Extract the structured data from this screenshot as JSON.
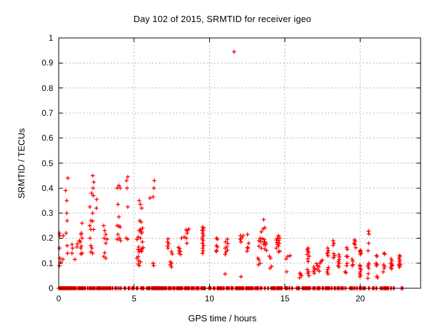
{
  "colors": {
    "background": "#ffffff",
    "marker": "#ff0000",
    "grid": "#b5b5b5",
    "axis": "#000000",
    "text": "#000000"
  },
  "chart_data": {
    "type": "scatter",
    "title": "Day 102 of 2015, SRMTID for receiver igeo",
    "xlabel": "GPS time / hours",
    "ylabel": "SRMTID / TECUs",
    "xlim": [
      0,
      24
    ],
    "ylim": [
      0,
      1
    ],
    "grid": true,
    "legend": "none",
    "marker": "plus",
    "xtick_values": [
      0,
      5,
      10,
      15,
      20
    ],
    "xtick_labels": [
      "0",
      "5",
      "10",
      "15",
      "20"
    ],
    "ytick_values": [
      0,
      0.1,
      0.2,
      0.3,
      0.4,
      0.5,
      0.6,
      0.7,
      0.8,
      0.9,
      1
    ],
    "ytick_labels": [
      "0",
      "0.1",
      "0.2",
      "0.3",
      "0.4",
      "0.5",
      "0.6",
      "0.7",
      "0.8",
      "0.9",
      "1"
    ],
    "points": [
      [
        0.05,
        0.22
      ],
      [
        0.08,
        0.21
      ],
      [
        0.05,
        0.16
      ],
      [
        0.08,
        0.12
      ],
      [
        0.05,
        0.09
      ],
      [
        0.12,
        0.105
      ],
      [
        0.3,
        0.21
      ],
      [
        0.28,
        0.115
      ],
      [
        0.61,
        0.44
      ],
      [
        0.46,
        0.39
      ],
      [
        0.53,
        0.35
      ],
      [
        0.53,
        0.3
      ],
      [
        0.56,
        0.27
      ],
      [
        0.49,
        0.22
      ],
      [
        0.56,
        0.17
      ],
      [
        0.58,
        0.14
      ],
      [
        0.88,
        0.175
      ],
      [
        0.92,
        0.16
      ],
      [
        0.88,
        0.14
      ],
      [
        1.07,
        0.115
      ],
      [
        1.24,
        0.177
      ],
      [
        1.21,
        0.165
      ],
      [
        1.55,
        0.26
      ],
      [
        1.5,
        0.22
      ],
      [
        1.48,
        0.215
      ],
      [
        1.55,
        0.2
      ],
      [
        1.43,
        0.185
      ],
      [
        1.5,
        0.168
      ],
      [
        1.46,
        0.16
      ],
      [
        1.55,
        0.14
      ],
      [
        1.48,
        0.137
      ],
      [
        1.37,
        0.19
      ],
      [
        2.26,
        0.45
      ],
      [
        2.32,
        0.424
      ],
      [
        2.28,
        0.4
      ],
      [
        2.18,
        0.38
      ],
      [
        2.3,
        0.37
      ],
      [
        2.52,
        0.355
      ],
      [
        2.5,
        0.32
      ],
      [
        2.06,
        0.325
      ],
      [
        2.25,
        0.3
      ],
      [
        2.14,
        0.27
      ],
      [
        2.25,
        0.268
      ],
      [
        2.06,
        0.25
      ],
      [
        2.13,
        0.235
      ],
      [
        2.31,
        0.235
      ],
      [
        2.08,
        0.2
      ],
      [
        2.13,
        0.17
      ],
      [
        2.2,
        0.16
      ],
      [
        2.13,
        0.145
      ],
      [
        2.25,
        0.14
      ],
      [
        2.98,
        0.25
      ],
      [
        3.05,
        0.23
      ],
      [
        3.12,
        0.215
      ],
      [
        3.02,
        0.2
      ],
      [
        3.2,
        0.195
      ],
      [
        3.12,
        0.18
      ],
      [
        3.05,
        0.142
      ],
      [
        2.99,
        0.127
      ],
      [
        3.12,
        0.12
      ],
      [
        3.99,
        0.41
      ],
      [
        3.88,
        0.4
      ],
      [
        4.08,
        0.4
      ],
      [
        3.93,
        0.335
      ],
      [
        3.99,
        0.285
      ],
      [
        3.88,
        0.25
      ],
      [
        3.99,
        0.248
      ],
      [
        4.08,
        0.245
      ],
      [
        3.93,
        0.215
      ],
      [
        4.03,
        0.2
      ],
      [
        3.88,
        0.195
      ],
      [
        4.11,
        0.19
      ],
      [
        4.58,
        0.445
      ],
      [
        4.5,
        0.43
      ],
      [
        4.53,
        0.4
      ],
      [
        4.58,
        0.325
      ],
      [
        4.47,
        0.2
      ],
      [
        4.58,
        0.196
      ],
      [
        5.34,
        0.35
      ],
      [
        5.42,
        0.335
      ],
      [
        5.5,
        0.32
      ],
      [
        5.37,
        0.27
      ],
      [
        5.46,
        0.265
      ],
      [
        5.56,
        0.24
      ],
      [
        5.42,
        0.235
      ],
      [
        5.34,
        0.23
      ],
      [
        5.48,
        0.225
      ],
      [
        5.5,
        0.22
      ],
      [
        5.27,
        0.205
      ],
      [
        5.42,
        0.2
      ],
      [
        5.19,
        0.195
      ],
      [
        5.55,
        0.185
      ],
      [
        5.31,
        0.165
      ],
      [
        5.6,
        0.162
      ],
      [
        5.52,
        0.158
      ],
      [
        5.27,
        0.155
      ],
      [
        5.46,
        0.152
      ],
      [
        5.5,
        0.147
      ],
      [
        5.34,
        0.145
      ],
      [
        5.27,
        0.127
      ],
      [
        5.19,
        0.12
      ],
      [
        5.31,
        0.11
      ],
      [
        5.42,
        0.105
      ],
      [
        5.27,
        0.097
      ],
      [
        5.34,
        0.09
      ],
      [
        6.05,
        0.36
      ],
      [
        6.34,
        0.43
      ],
      [
        6.31,
        0.4
      ],
      [
        6.26,
        0.365
      ],
      [
        6.26,
        0.1
      ],
      [
        6.3,
        0.09
      ],
      [
        7.25,
        0.197
      ],
      [
        7.22,
        0.185
      ],
      [
        7.3,
        0.178
      ],
      [
        7.22,
        0.168
      ],
      [
        7.25,
        0.16
      ],
      [
        7.48,
        0.146
      ],
      [
        7.53,
        0.137
      ],
      [
        7.4,
        0.105
      ],
      [
        7.48,
        0.1
      ],
      [
        7.4,
        0.093
      ],
      [
        7.48,
        0.085
      ],
      [
        7.94,
        0.163
      ],
      [
        8.02,
        0.158
      ],
      [
        7.99,
        0.15
      ],
      [
        8.06,
        0.147
      ],
      [
        7.99,
        0.14
      ],
      [
        8.09,
        0.135
      ],
      [
        8.14,
        0.2
      ],
      [
        8.32,
        0.205
      ],
      [
        8.44,
        0.233
      ],
      [
        8.52,
        0.22
      ],
      [
        8.55,
        0.23
      ],
      [
        8.47,
        0.2
      ],
      [
        8.5,
        0.18
      ],
      [
        8.63,
        0.237
      ],
      [
        9.54,
        0.244
      ],
      [
        9.62,
        0.24
      ],
      [
        9.51,
        0.232
      ],
      [
        9.59,
        0.23
      ],
      [
        9.54,
        0.22
      ],
      [
        9.6,
        0.212
      ],
      [
        9.55,
        0.205
      ],
      [
        9.52,
        0.197
      ],
      [
        9.58,
        0.19
      ],
      [
        9.54,
        0.18
      ],
      [
        9.6,
        0.17
      ],
      [
        9.55,
        0.16
      ],
      [
        9.58,
        0.15
      ],
      [
        9.54,
        0.14
      ],
      [
        10.46,
        0.2
      ],
      [
        10.53,
        0.196
      ],
      [
        10.46,
        0.17
      ],
      [
        10.53,
        0.165
      ],
      [
        10.43,
        0.148
      ],
      [
        10.49,
        0.15
      ],
      [
        11.19,
        0.196
      ],
      [
        11.07,
        0.185
      ],
      [
        11.22,
        0.178
      ],
      [
        11.15,
        0.165
      ],
      [
        11.04,
        0.16
      ],
      [
        11.19,
        0.152
      ],
      [
        11.1,
        0.145
      ],
      [
        11.04,
        0.135
      ],
      [
        11.04,
        0.057
      ],
      [
        11.63,
        0.945
      ],
      [
        12.06,
        0.21
      ],
      [
        12.14,
        0.2
      ],
      [
        12.03,
        0.196
      ],
      [
        12.22,
        0.21
      ],
      [
        12.52,
        0.215
      ],
      [
        12.09,
        0.185
      ],
      [
        12.6,
        0.18
      ],
      [
        12.52,
        0.163
      ],
      [
        12.55,
        0.16
      ],
      [
        12.49,
        0.148
      ],
      [
        12.09,
        0.046
      ],
      [
        13.59,
        0.274
      ],
      [
        13.67,
        0.242
      ],
      [
        13.56,
        0.237
      ],
      [
        13.44,
        0.225
      ],
      [
        13.36,
        0.2
      ],
      [
        13.51,
        0.197
      ],
      [
        13.62,
        0.195
      ],
      [
        13.28,
        0.19
      ],
      [
        13.41,
        0.185
      ],
      [
        13.67,
        0.185
      ],
      [
        13.74,
        0.18
      ],
      [
        13.59,
        0.176
      ],
      [
        13.71,
        0.173
      ],
      [
        13.28,
        0.168
      ],
      [
        13.44,
        0.16
      ],
      [
        13.67,
        0.157
      ],
      [
        13.77,
        0.151
      ],
      [
        13.21,
        0.12
      ],
      [
        13.28,
        0.113
      ],
      [
        13.36,
        0.1
      ],
      [
        13.25,
        0.094
      ],
      [
        13.97,
        0.128
      ],
      [
        14.05,
        0.12
      ],
      [
        14.12,
        0.087
      ],
      [
        14.02,
        0.08
      ],
      [
        14.58,
        0.21
      ],
      [
        14.5,
        0.2
      ],
      [
        14.66,
        0.2
      ],
      [
        14.43,
        0.193
      ],
      [
        14.58,
        0.19
      ],
      [
        14.47,
        0.183
      ],
      [
        14.63,
        0.18
      ],
      [
        14.5,
        0.175
      ],
      [
        14.58,
        0.168
      ],
      [
        14.43,
        0.16
      ],
      [
        14.66,
        0.148
      ],
      [
        14.58,
        0.146
      ],
      [
        15.08,
        0.117
      ],
      [
        15.19,
        0.127
      ],
      [
        15.35,
        0.13
      ],
      [
        15.12,
        0.066
      ],
      [
        16.0,
        0.06
      ],
      [
        16.05,
        0.055
      ],
      [
        16.1,
        0.05
      ],
      [
        15.98,
        0.042
      ],
      [
        16.55,
        0.16
      ],
      [
        16.49,
        0.155
      ],
      [
        16.52,
        0.148
      ],
      [
        16.57,
        0.143
      ],
      [
        16.49,
        0.135
      ],
      [
        16.61,
        0.128
      ],
      [
        16.52,
        0.117
      ],
      [
        16.55,
        0.107
      ],
      [
        16.49,
        0.075
      ],
      [
        16.57,
        0.066
      ],
      [
        16.52,
        0.06
      ],
      [
        16.6,
        0.05
      ],
      [
        16.92,
        0.085
      ],
      [
        16.97,
        0.078
      ],
      [
        16.9,
        0.068
      ],
      [
        16.95,
        0.06
      ],
      [
        17.1,
        0.098
      ],
      [
        17.17,
        0.09
      ],
      [
        17.25,
        0.085
      ],
      [
        17.14,
        0.075
      ],
      [
        17.28,
        0.068
      ],
      [
        17.33,
        0.1
      ],
      [
        17.4,
        0.107
      ],
      [
        17.48,
        0.112
      ],
      [
        17.84,
        0.16
      ],
      [
        17.88,
        0.15
      ],
      [
        17.86,
        0.143
      ],
      [
        17.8,
        0.138
      ],
      [
        17.86,
        0.13
      ],
      [
        17.89,
        0.083
      ],
      [
        17.84,
        0.075
      ],
      [
        17.8,
        0.065
      ],
      [
        17.86,
        0.057
      ],
      [
        18.2,
        0.19
      ],
      [
        18.25,
        0.18
      ],
      [
        18.2,
        0.172
      ],
      [
        18.24,
        0.138
      ],
      [
        18.3,
        0.13
      ],
      [
        18.22,
        0.122
      ],
      [
        18.58,
        0.134
      ],
      [
        18.62,
        0.125
      ],
      [
        18.6,
        0.115
      ],
      [
        18.55,
        0.107
      ],
      [
        18.6,
        0.1
      ],
      [
        18.53,
        0.09
      ],
      [
        18.58,
        0.085
      ],
      [
        19.1,
        0.162
      ],
      [
        19.14,
        0.155
      ],
      [
        19.08,
        0.128
      ],
      [
        19.16,
        0.126
      ],
      [
        19.12,
        0.1
      ],
      [
        19.1,
        0.09
      ],
      [
        19.0,
        0.066
      ],
      [
        19.05,
        0.062
      ],
      [
        19.45,
        0.116
      ],
      [
        19.5,
        0.108
      ],
      [
        19.52,
        0.095
      ],
      [
        19.47,
        0.09
      ],
      [
        19.62,
        0.193
      ],
      [
        19.66,
        0.188
      ],
      [
        19.6,
        0.18
      ],
      [
        19.64,
        0.175
      ],
      [
        19.7,
        0.162
      ],
      [
        20.0,
        0.152
      ],
      [
        20.02,
        0.148
      ],
      [
        19.98,
        0.145
      ],
      [
        20.05,
        0.14
      ],
      [
        20.0,
        0.135
      ],
      [
        19.97,
        0.092
      ],
      [
        20.0,
        0.088
      ],
      [
        19.98,
        0.08
      ],
      [
        20.05,
        0.075
      ],
      [
        20.0,
        0.065
      ],
      [
        19.97,
        0.058
      ],
      [
        20.02,
        0.052
      ],
      [
        19.98,
        0.046
      ],
      [
        20.54,
        0.228
      ],
      [
        20.58,
        0.217
      ],
      [
        20.55,
        0.18
      ],
      [
        20.52,
        0.15
      ],
      [
        20.57,
        0.1
      ],
      [
        20.54,
        0.094
      ],
      [
        20.5,
        0.088
      ],
      [
        20.56,
        0.08
      ],
      [
        20.53,
        0.058
      ],
      [
        20.5,
        0.04
      ],
      [
        21.07,
        0.13
      ],
      [
        21.11,
        0.128
      ],
      [
        21.05,
        0.1
      ],
      [
        21.11,
        0.095
      ],
      [
        21.07,
        0.09
      ],
      [
        21.1,
        0.048
      ],
      [
        21.14,
        0.042
      ],
      [
        21.58,
        0.14
      ],
      [
        21.62,
        0.136
      ],
      [
        21.55,
        0.093
      ],
      [
        21.62,
        0.087
      ],
      [
        21.58,
        0.08
      ],
      [
        21.52,
        0.065
      ],
      [
        22.05,
        0.117
      ],
      [
        22.1,
        0.11
      ],
      [
        22.03,
        0.1
      ],
      [
        22.08,
        0.094
      ],
      [
        22.13,
        0.09
      ],
      [
        22.01,
        0.084
      ],
      [
        22.07,
        0.078
      ],
      [
        22.6,
        0.13
      ],
      [
        22.64,
        0.128
      ],
      [
        22.57,
        0.12
      ],
      [
        22.62,
        0.113
      ],
      [
        22.6,
        0.107
      ],
      [
        22.66,
        0.096
      ],
      [
        22.55,
        0.094
      ],
      [
        22.62,
        0.09
      ],
      [
        22.6,
        0.084
      ]
    ],
    "zero_band_segments": [
      [
        0,
        0.15
      ],
      [
        0.21,
        0.41
      ],
      [
        0.47,
        1.18
      ],
      [
        1.27,
        1.68
      ],
      [
        1.73,
        1.8
      ],
      [
        1.91,
        1.98
      ],
      [
        2.05,
        2.11
      ],
      [
        2.15,
        2.23
      ],
      [
        2.27,
        2.44
      ],
      [
        2.52,
        2.84
      ],
      [
        2.9,
        3.05
      ],
      [
        3.13,
        3.24
      ],
      [
        3.3,
        3.48
      ],
      [
        3.54,
        3.63
      ],
      [
        3.73,
        3.85
      ],
      [
        3.94,
        4.03
      ],
      [
        4.09,
        4.17
      ],
      [
        4.34,
        4.46
      ],
      [
        4.61,
        4.73
      ],
      [
        4.85,
        5.04
      ],
      [
        5.15,
        5.27
      ],
      [
        5.45,
        5.65
      ],
      [
        5.83,
        6.08
      ],
      [
        6.17,
        7.18
      ],
      [
        7.27,
        7.48
      ],
      [
        7.57,
        7.76
      ],
      [
        7.82,
        8.24
      ],
      [
        8.34,
        8.7
      ],
      [
        8.79,
        9.01
      ],
      [
        9.1,
        9.34
      ],
      [
        9.43,
        9.77
      ],
      [
        9.95,
        10.14
      ],
      [
        10.26,
        10.38
      ],
      [
        10.5,
        10.87
      ],
      [
        10.93,
        11.02
      ],
      [
        11.11,
        11.33
      ],
      [
        11.42,
        11.6
      ],
      [
        11.72,
        12.12
      ],
      [
        12.18,
        12.31
      ],
      [
        12.4,
        12.92
      ],
      [
        13.01,
        13.28
      ],
      [
        13.37,
        13.47
      ],
      [
        13.65,
        13.74
      ],
      [
        13.86,
        13.95
      ],
      [
        14.08,
        14.38
      ],
      [
        14.47,
        14.84
      ],
      [
        15.02,
        15.21
      ],
      [
        15.27,
        15.36
      ],
      [
        15.45,
        15.54
      ],
      [
        15.77,
        15.97
      ],
      [
        16.15,
        16.73
      ],
      [
        16.86,
        17.04
      ],
      [
        17.13,
        17.37
      ],
      [
        17.47,
        17.59
      ],
      [
        17.68,
        17.98
      ],
      [
        18.08,
        18.17
      ],
      [
        18.26,
        18.38
      ],
      [
        18.47,
        18.66
      ],
      [
        18.72,
        18.9
      ],
      [
        18.99,
        19.08
      ],
      [
        19.3,
        19.51
      ],
      [
        19.6,
        19.69
      ],
      [
        19.76,
        19.82
      ],
      [
        19.94,
        20.09
      ],
      [
        20.18,
        20.37
      ],
      [
        20.55,
        20.64
      ],
      [
        20.82,
        20.92
      ],
      [
        21.04,
        21.13
      ],
      [
        21.34,
        21.44
      ],
      [
        21.53,
        21.89
      ],
      [
        22.02,
        22.08
      ],
      [
        22.2,
        22.29
      ],
      [
        22.72,
        22.84
      ]
    ]
  }
}
